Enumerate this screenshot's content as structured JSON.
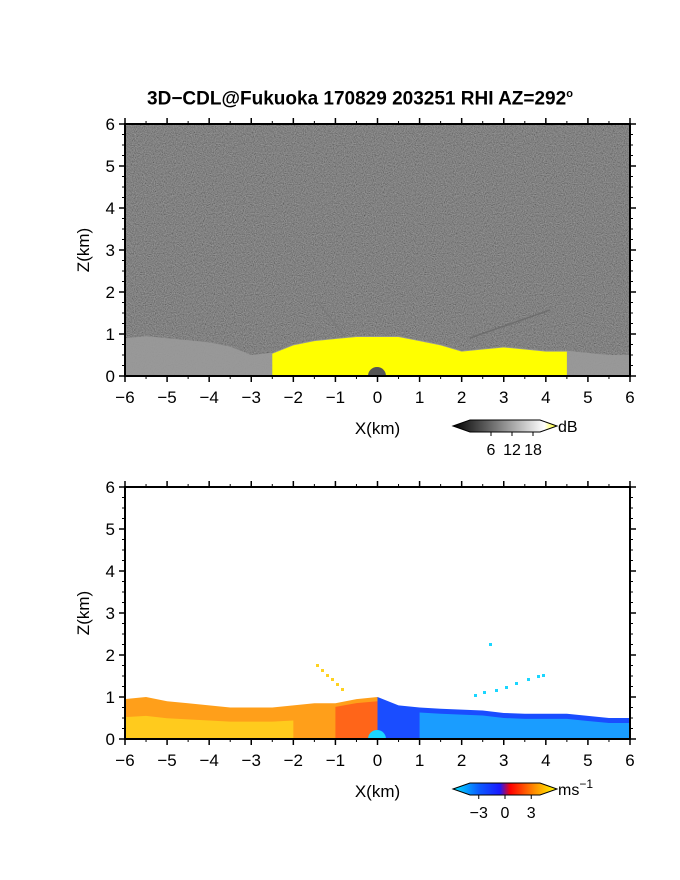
{
  "title": {
    "main": "3D−CDL@Fukuoka 170829 203251 RHI AZ=292",
    "sup": "o"
  },
  "chart_data": [
    {
      "type": "heatmap",
      "name": "reflectivity",
      "xlabel": "X(km)",
      "ylabel": "Z(km)",
      "xlim": [
        -6,
        6
      ],
      "ylim": [
        0,
        6
      ],
      "xticks": [
        -6,
        -5,
        -4,
        -3,
        -2,
        -1,
        0,
        1,
        2,
        3,
        4,
        5,
        6
      ],
      "yticks": [
        0,
        1,
        2,
        3,
        4,
        5,
        6
      ],
      "xtick_labels": [
        "−6",
        "−5",
        "−4",
        "−3",
        "−2",
        "−1",
        "0",
        "1",
        "2",
        "3",
        "4",
        "5",
        "6"
      ],
      "ytick_labels": [
        "0",
        "1",
        "2",
        "3",
        "4",
        "5",
        "6"
      ],
      "colorbar": {
        "unit": "dB",
        "ticks": [
          "6",
          "12",
          "18"
        ],
        "tick_values": [
          6,
          12,
          18
        ],
        "range": [
          0,
          20
        ],
        "colors": [
          "#000000",
          "#ffffff",
          "#ffff00"
        ]
      },
      "background_color": "#222222",
      "layer_top_profile": {
        "x": [
          -6,
          -5.5,
          -5,
          -4.5,
          -4,
          -3.5,
          -3,
          -2.5,
          -2,
          -1.5,
          -1,
          -0.5,
          0,
          0.5,
          1,
          1.5,
          2,
          2.5,
          3,
          3.5,
          4,
          4.5,
          5,
          5.5,
          6
        ],
        "z": [
          0.9,
          0.95,
          0.9,
          0.85,
          0.8,
          0.7,
          0.5,
          0.55,
          0.75,
          0.85,
          0.9,
          0.95,
          0.95,
          0.95,
          0.85,
          0.75,
          0.6,
          0.65,
          0.7,
          0.65,
          0.6,
          0.6,
          0.55,
          0.5,
          0.5
        ]
      }
    },
    {
      "type": "heatmap",
      "name": "doppler-velocity",
      "xlabel": "X(km)",
      "ylabel": "Z(km)",
      "xlim": [
        -6,
        6
      ],
      "ylim": [
        0,
        6
      ],
      "xticks": [
        -6,
        -5,
        -4,
        -3,
        -2,
        -1,
        0,
        1,
        2,
        3,
        4,
        5,
        6
      ],
      "yticks": [
        0,
        1,
        2,
        3,
        4,
        5,
        6
      ],
      "xtick_labels": [
        "−6",
        "−5",
        "−4",
        "−3",
        "−2",
        "−1",
        "0",
        "1",
        "2",
        "3",
        "4",
        "5",
        "6"
      ],
      "ytick_labels": [
        "0",
        "1",
        "2",
        "3",
        "4",
        "5",
        "6"
      ],
      "colorbar": {
        "unit": "ms",
        "unit_exp": "−1",
        "ticks": [
          "−3",
          "0",
          "3"
        ],
        "tick_values": [
          -3,
          0,
          3
        ],
        "range": [
          -4,
          4
        ],
        "colors": [
          "#00e5ff",
          "#0b5cff",
          "#1a1aff",
          "#ff0000",
          "#ff8c00",
          "#ffff00"
        ]
      },
      "layer_top_profile": {
        "x": [
          -6,
          -5.5,
          -5,
          -4.5,
          -4,
          -3.5,
          -3,
          -2.5,
          -2,
          -1.5,
          -1,
          -0.5,
          0,
          0.5,
          1,
          1.5,
          2,
          2.5,
          3,
          3.5,
          4,
          4.5,
          5,
          5.5,
          6
        ],
        "z": [
          0.95,
          1.0,
          0.9,
          0.85,
          0.8,
          0.75,
          0.75,
          0.75,
          0.8,
          0.85,
          0.85,
          0.95,
          1.0,
          0.8,
          0.75,
          0.72,
          0.7,
          0.68,
          0.62,
          0.6,
          0.6,
          0.6,
          0.55,
          0.5,
          0.5
        ]
      }
    }
  ]
}
